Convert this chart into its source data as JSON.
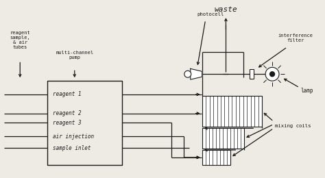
{
  "bg_color": "#eeebe5",
  "line_color": "#1a1a1a",
  "text_color": "#1a1a1a",
  "fig_width": 4.74,
  "fig_height": 2.6,
  "dpi": 100,
  "labels": {
    "reagent_sample": "reagent\nsample,\n& air\ntubes",
    "multichannel_pump": "multi-channel\npump",
    "photocell": "photocell",
    "waste": "waste",
    "interference_filter": "interference\nfilter",
    "lamp": "lamp",
    "mixing_coils": "mixing coils",
    "reagent1": "reagent 1",
    "reagent2": "reagent 2",
    "reagent3": "reagent 3",
    "air_injection": "air injection",
    "sample_inlet": "sample inlet"
  }
}
